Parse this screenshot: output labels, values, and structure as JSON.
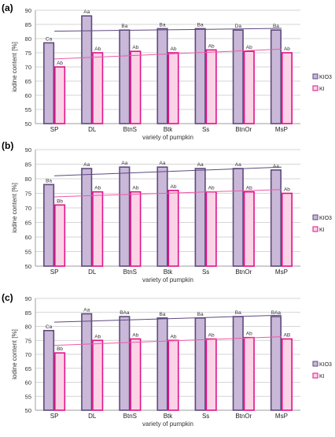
{
  "figure": {
    "panels": [
      "(a)",
      "(b)",
      "(c)"
    ]
  },
  "colors": {
    "kio3_fill": "#c9b8d8",
    "kio3_stroke": "#5e4a7e",
    "ki_fill": "#fbd3e6",
    "ki_stroke": "#e0128a",
    "kio3_trend": "#5e4a7e",
    "ki_trend": "#ee5aa8",
    "grid": "#c8c8c8"
  },
  "chart_data": [
    {
      "panel_label": "(a)",
      "type": "bar",
      "categories": [
        "SP",
        "DL",
        "BtnS",
        "Btk",
        "Ss",
        "BtnOr",
        "MsP"
      ],
      "series": [
        {
          "name": "KIO3",
          "values": [
            78.5,
            88.0,
            83.0,
            83.5,
            83.5,
            83.0,
            83.0
          ],
          "labels": [
            "Ca",
            "Aa",
            "Ba",
            "Ba",
            "Ba",
            "Da",
            "Ba"
          ],
          "trend": [
            82.6,
            83.6
          ]
        },
        {
          "name": "KI",
          "values": [
            70.0,
            75.0,
            75.5,
            75.0,
            76.0,
            75.5,
            75.0
          ],
          "labels": [
            "Ab",
            "Ab",
            "Ab",
            "Ab",
            "Ab",
            "Ab",
            "Ab"
          ],
          "trend": [
            72.8,
            76.3
          ]
        }
      ],
      "ylim": [
        50,
        90
      ],
      "yticks": [
        50,
        55,
        60,
        65,
        70,
        75,
        80,
        85,
        90
      ],
      "ylabel": "iodine content [%]",
      "xlabel": "variety of pumpkin",
      "legend": "right"
    },
    {
      "panel_label": "(b)",
      "type": "bar",
      "categories": [
        "SP",
        "DL",
        "BtnS",
        "Btk",
        "Ss",
        "BtnOr",
        "MsP"
      ],
      "series": [
        {
          "name": "KIO3",
          "values": [
            78.0,
            83.5,
            84.0,
            84.0,
            83.5,
            83.5,
            83.0
          ],
          "labels": [
            "Ba",
            "Aa",
            "Aa",
            "Aa",
            "Aa",
            "Aa",
            "Aa"
          ],
          "trend": [
            81.0,
            84.0
          ]
        },
        {
          "name": "KI",
          "values": [
            71.0,
            75.5,
            75.5,
            76.0,
            75.5,
            75.5,
            75.0
          ],
          "labels": [
            "Bb",
            "Ab",
            "Ab",
            "Ab",
            "Ab",
            "Ab",
            "Ab"
          ],
          "trend": [
            73.8,
            76.3
          ]
        }
      ],
      "ylim": [
        50,
        90
      ],
      "yticks": [
        50,
        55,
        60,
        65,
        70,
        75,
        80,
        85,
        90
      ],
      "ylabel": "iodine content [%]",
      "xlabel": "variety of pumpkin",
      "legend": "right"
    },
    {
      "panel_label": "(c)",
      "type": "bar",
      "categories": [
        "SP",
        "DL",
        "BtnS",
        "Btk",
        "Ss",
        "BtnOr",
        "MsP"
      ],
      "series": [
        {
          "name": "KIO3",
          "values": [
            78.5,
            84.5,
            83.5,
            83.0,
            83.0,
            83.5,
            83.5
          ],
          "labels": [
            "Ca",
            "Aa",
            "BAa",
            "Ba",
            "Ba",
            "Ba",
            "BAa"
          ],
          "trend": [
            81.5,
            84.0
          ]
        },
        {
          "name": "KI",
          "values": [
            70.5,
            75.0,
            75.5,
            75.0,
            75.5,
            76.0,
            75.5
          ],
          "labels": [
            "Bb",
            "Ab",
            "Ab",
            "Ab",
            "Ab",
            "Ab",
            "AB"
          ],
          "trend": [
            73.2,
            76.3
          ]
        }
      ],
      "ylim": [
        50,
        90
      ],
      "yticks": [
        50,
        55,
        60,
        65,
        70,
        75,
        80,
        85,
        90
      ],
      "ylabel": "iodine content [%]",
      "xlabel": "variety of pumpkin",
      "legend": "right"
    }
  ]
}
